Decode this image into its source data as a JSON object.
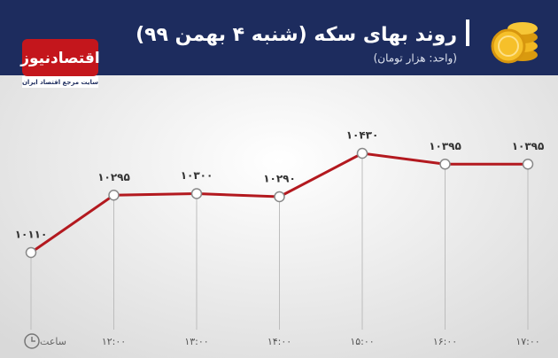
{
  "chart_data": {
    "type": "line",
    "title": "روند بهای سکه (شنبه ۴ بهمن ۹۹)",
    "subtitle": "(واحد: هزار تومان)",
    "x_label": "ساعت",
    "categories": [
      null,
      "۱۲:۰۰",
      "۱۳:۰۰",
      "۱۴:۰۰",
      "۱۵:۰۰",
      "۱۶:۰۰",
      "۱۷:۰۰"
    ],
    "values": [
      10110,
      10295,
      10300,
      10290,
      10430,
      10395,
      10395
    ],
    "value_labels": [
      "۱۰۱۱۰",
      "۱۰۲۹۵",
      "۱۰۳۰۰",
      "۱۰۲۹۰",
      "۱۰۴۳۰",
      "۱۰۳۹۵",
      "۱۰۳۹۵"
    ],
    "color": "#b3191f"
  },
  "brand": {
    "name": "اقتصادنیوز",
    "tagline": "سایت مرجع اقتصاد ایران"
  }
}
